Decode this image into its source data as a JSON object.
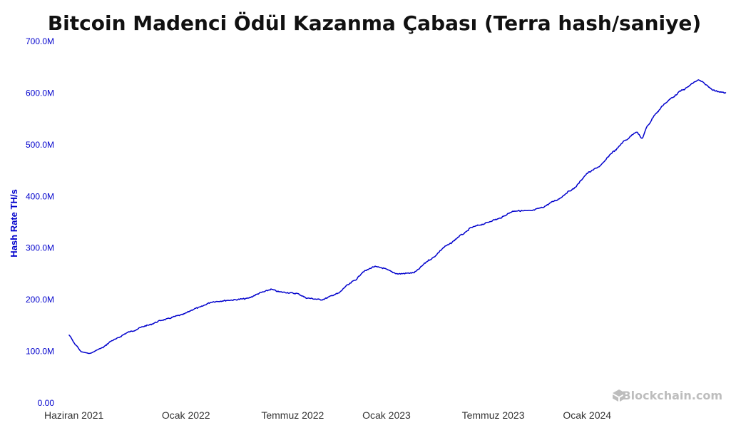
{
  "colors": {
    "title": "#111111",
    "axis_text": "#0000cc",
    "x_text": "#333333",
    "line": "#0000cc",
    "watermark": "#bdbdbd"
  },
  "watermark": {
    "text": "Blockchain.com",
    "icon": "blockchain-logo-icon"
  },
  "chart_data": {
    "type": "line",
    "title": "Bitcoin Madenci Ödül Kazanma Çabası (Terra hash/saniye)",
    "xlabel": "",
    "ylabel": "Hash Rate TH/s",
    "ylim": [
      0,
      700000000
    ],
    "xlim": [
      "2021-06-01",
      "2024-09-20"
    ],
    "yticks": [
      0,
      100000000,
      200000000,
      300000000,
      400000000,
      500000000,
      600000000,
      700000000
    ],
    "ytick_labels": [
      "0.00",
      "100.0M",
      "200.0M",
      "300.0M",
      "400.0M",
      "500.0M",
      "600.0M",
      "700.0M"
    ],
    "xticks": [
      "2021-06-01",
      "2022-01-01",
      "2022-07-01",
      "2023-01-01",
      "2023-07-01",
      "2024-01-01"
    ],
    "xtick_labels": [
      "Haziran 2021",
      "Ocak 2022",
      "Temmuz 2022",
      "Ocak 2023",
      "Temmuz 2023",
      "Ocak 2024"
    ],
    "grid": false,
    "legend": "none",
    "series": [
      {
        "x": [
          "2021-06-12",
          "2021-06-25",
          "2021-07-05",
          "2021-07-20",
          "2021-08-10",
          "2021-09-01",
          "2021-10-01",
          "2021-11-01",
          "2021-12-01",
          "2022-01-01",
          "2022-02-01",
          "2022-03-01",
          "2022-04-01",
          "2022-05-01",
          "2022-06-01",
          "2022-06-15",
          "2022-07-01",
          "2022-08-01",
          "2022-08-20",
          "2022-09-15",
          "2022-10-15",
          "2022-11-01",
          "2022-11-15",
          "2022-12-01",
          "2022-12-20",
          "2023-01-01",
          "2023-02-01",
          "2023-03-01",
          "2023-04-01",
          "2023-05-01",
          "2023-06-01",
          "2023-06-15",
          "2023-07-01",
          "2023-08-01",
          "2023-09-01",
          "2023-10-01",
          "2023-10-20",
          "2023-11-15",
          "2023-12-15",
          "2024-01-15",
          "2024-02-01",
          "2024-03-01",
          "2024-03-20",
          "2024-04-10",
          "2024-04-20",
          "2024-05-01",
          "2024-05-15",
          "2024-06-01",
          "2024-06-15",
          "2024-07-01",
          "2024-08-01",
          "2024-09-01",
          "2024-09-20"
        ],
        "values": [
          132000000,
          112000000,
          99000000,
          96000000,
          106000000,
          122000000,
          138000000,
          150000000,
          161000000,
          170000000,
          184000000,
          196000000,
          199000000,
          202000000,
          215000000,
          220000000,
          215000000,
          212000000,
          203000000,
          200000000,
          212000000,
          228000000,
          238000000,
          255000000,
          264000000,
          262000000,
          250000000,
          252000000,
          278000000,
          305000000,
          328000000,
          340000000,
          345000000,
          356000000,
          372000000,
          372000000,
          378000000,
          392000000,
          413000000,
          447000000,
          457000000,
          488000000,
          508000000,
          525000000,
          512000000,
          538000000,
          560000000,
          580000000,
          592000000,
          605000000,
          625000000,
          604000000,
          600000000
        ]
      }
    ]
  }
}
